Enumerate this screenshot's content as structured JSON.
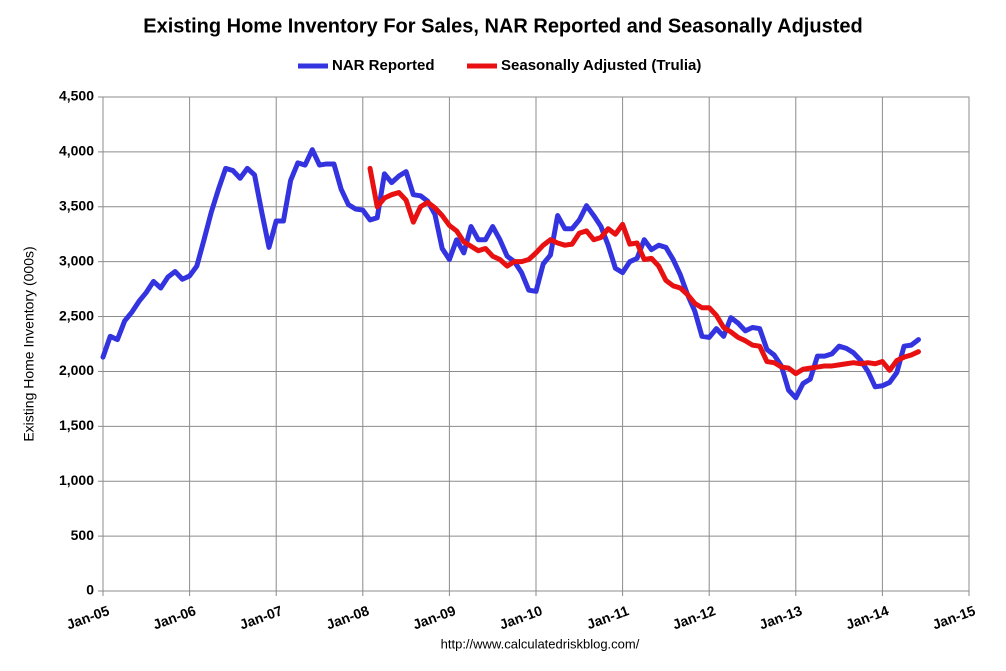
{
  "chart_data": {
    "type": "line",
    "title": "Existing Home Inventory For Sales, NAR Reported and Seasonally Adjusted",
    "y_label": "Existing Home Inventory (000s)",
    "source": "http://www.calculatedriskblog.com/",
    "grid": true,
    "legend": "top",
    "xlim": [
      "2005-01",
      "2015-01"
    ],
    "xticks": [
      {
        "value": "2005-01",
        "label": "Jan-05"
      },
      {
        "value": "2006-01",
        "label": "Jan-06"
      },
      {
        "value": "2007-01",
        "label": "Jan-07"
      },
      {
        "value": "2008-01",
        "label": "Jan-08"
      },
      {
        "value": "2009-01",
        "label": "Jan-09"
      },
      {
        "value": "2010-01",
        "label": "Jan-10"
      },
      {
        "value": "2011-01",
        "label": "Jan-11"
      },
      {
        "value": "2012-01",
        "label": "Jan-12"
      },
      {
        "value": "2013-01",
        "label": "Jan-13"
      },
      {
        "value": "2014-01",
        "label": "Jan-14"
      },
      {
        "value": "2015-01",
        "label": "Jan-15"
      }
    ],
    "ylim": [
      0,
      4500
    ],
    "yticks": [
      0,
      500,
      {
        "value": 1000,
        "label": "1,000"
      },
      {
        "value": 1500,
        "label": "1,500"
      },
      {
        "value": 2000,
        "label": "2,000"
      },
      {
        "value": 2500,
        "label": "2,500"
      },
      {
        "value": 3000,
        "label": "3,000"
      },
      {
        "value": 3500,
        "label": "3,500"
      },
      {
        "value": 4000,
        "label": "4,000"
      },
      {
        "value": 4500,
        "label": "4,500"
      }
    ],
    "x": [
      "2005-01",
      "2005-02",
      "2005-03",
      "2005-04",
      "2005-05",
      "2005-06",
      "2005-07",
      "2005-08",
      "2005-09",
      "2005-10",
      "2005-11",
      "2005-12",
      "2006-01",
      "2006-02",
      "2006-03",
      "2006-04",
      "2006-05",
      "2006-06",
      "2006-07",
      "2006-08",
      "2006-09",
      "2006-10",
      "2006-11",
      "2006-12",
      "2007-01",
      "2007-02",
      "2007-03",
      "2007-04",
      "2007-05",
      "2007-06",
      "2007-07",
      "2007-08",
      "2007-09",
      "2007-10",
      "2007-11",
      "2007-12",
      "2008-01",
      "2008-02",
      "2008-03",
      "2008-04",
      "2008-05",
      "2008-06",
      "2008-07",
      "2008-08",
      "2008-09",
      "2008-10",
      "2008-11",
      "2008-12",
      "2009-01",
      "2009-02",
      "2009-03",
      "2009-04",
      "2009-05",
      "2009-06",
      "2009-07",
      "2009-08",
      "2009-09",
      "2009-10",
      "2009-11",
      "2009-12",
      "2010-01",
      "2010-02",
      "2010-03",
      "2010-04",
      "2010-05",
      "2010-06",
      "2010-07",
      "2010-08",
      "2010-09",
      "2010-10",
      "2010-11",
      "2010-12",
      "2011-01",
      "2011-02",
      "2011-03",
      "2011-04",
      "2011-05",
      "2011-06",
      "2011-07",
      "2011-08",
      "2011-09",
      "2011-10",
      "2011-11",
      "2011-12",
      "2012-01",
      "2012-02",
      "2012-03",
      "2012-04",
      "2012-05",
      "2012-06",
      "2012-07",
      "2012-08",
      "2012-09",
      "2012-10",
      "2012-11",
      "2012-12",
      "2013-01",
      "2013-02",
      "2013-03",
      "2013-04",
      "2013-05",
      "2013-06",
      "2013-07",
      "2013-08",
      "2013-09",
      "2013-10",
      "2013-11",
      "2013-12",
      "2014-01",
      "2014-02",
      "2014-03",
      "2014-04",
      "2014-05",
      "2014-06"
    ],
    "series": [
      {
        "name": "NAR Reported",
        "color": "#3333e0",
        "values": [
          2130,
          2320,
          2290,
          2460,
          2540,
          2640,
          2720,
          2820,
          2760,
          2860,
          2910,
          2840,
          2870,
          2960,
          3200,
          3450,
          3660,
          3850,
          3830,
          3760,
          3850,
          3790,
          3450,
          3130,
          3370,
          3370,
          3740,
          3900,
          3880,
          4020,
          3880,
          3890,
          3890,
          3660,
          3520,
          3480,
          3470,
          3380,
          3400,
          3800,
          3720,
          3780,
          3820,
          3610,
          3600,
          3550,
          3430,
          3120,
          3020,
          3200,
          3080,
          3320,
          3200,
          3200,
          3320,
          3200,
          3050,
          3000,
          2900,
          2740,
          2730,
          2980,
          3060,
          3420,
          3300,
          3300,
          3380,
          3510,
          3420,
          3320,
          3150,
          2940,
          2900,
          3000,
          3030,
          3200,
          3110,
          3150,
          3130,
          3020,
          2880,
          2700,
          2550,
          2320,
          2310,
          2390,
          2320,
          2490,
          2440,
          2370,
          2400,
          2390,
          2200,
          2150,
          2050,
          1830,
          1760,
          1890,
          1930,
          2140,
          2140,
          2160,
          2230,
          2210,
          2170,
          2100,
          2000,
          1860,
          1870,
          1900,
          1990,
          2230,
          2240,
          2290
        ]
      },
      {
        "name": "Seasonally Adjusted (Trulia)",
        "color": "#e81010",
        "values": [
          null,
          null,
          null,
          null,
          null,
          null,
          null,
          null,
          null,
          null,
          null,
          null,
          null,
          null,
          null,
          null,
          null,
          null,
          null,
          null,
          null,
          null,
          null,
          null,
          null,
          null,
          null,
          null,
          null,
          null,
          null,
          null,
          null,
          null,
          null,
          null,
          null,
          3850,
          3500,
          3580,
          3610,
          3630,
          3560,
          3360,
          3500,
          3540,
          3490,
          3420,
          3330,
          3280,
          3180,
          3140,
          3100,
          3120,
          3050,
          3020,
          2960,
          3000,
          3000,
          3020,
          3080,
          3150,
          3200,
          3170,
          3150,
          3160,
          3260,
          3280,
          3200,
          3220,
          3300,
          3250,
          3340,
          3160,
          3170,
          3020,
          3030,
          2960,
          2830,
          2780,
          2760,
          2700,
          2620,
          2580,
          2580,
          2510,
          2400,
          2360,
          2310,
          2280,
          2240,
          2230,
          2090,
          2080,
          2040,
          2030,
          1980,
          2020,
          2030,
          2040,
          2050,
          2050,
          2060,
          2070,
          2080,
          2070,
          2080,
          2070,
          2090,
          2010,
          2100,
          2130,
          2150,
          2180
        ]
      }
    ]
  }
}
